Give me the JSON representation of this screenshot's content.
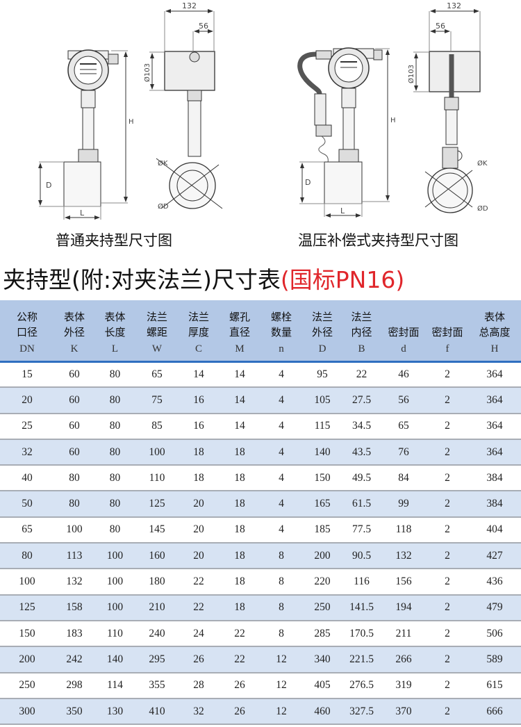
{
  "drawings": {
    "standard": {
      "caption": "普通夹持型尺寸图",
      "dims": {
        "overall_width": "132",
        "head_offset": "56",
        "head_diameter": "Ø103",
        "height": "H",
        "pipe_diameter": "D",
        "length": "L",
        "body_od": "ØK",
        "flange_od": "ØD"
      }
    },
    "compensated": {
      "caption": "温压补偿式夹持型尺寸图",
      "dims": {
        "overall_width": "132",
        "head_offset": "56",
        "head_diameter": "Ø103",
        "height": "H",
        "pipe_diameter": "D",
        "length": "L",
        "body_od": "ØK",
        "flange_od": "ØD"
      }
    }
  },
  "title": {
    "main": "夹持型(附:对夹法兰)尺寸表",
    "standard": "(国标PN16)",
    "accent_color": "#e0262b"
  },
  "table": {
    "columns": [
      {
        "l1": "公称",
        "l2": "口径",
        "sym": "DN"
      },
      {
        "l1": "表体",
        "l2": "外径",
        "sym": "K"
      },
      {
        "l1": "表体",
        "l2": "长度",
        "sym": "L"
      },
      {
        "l1": "法兰",
        "l2": "螺距",
        "sym": "W"
      },
      {
        "l1": "法兰",
        "l2": "厚度",
        "sym": "C"
      },
      {
        "l1": "螺孔",
        "l2": "直径",
        "sym": "M"
      },
      {
        "l1": "螺栓",
        "l2": "数量",
        "sym": "n"
      },
      {
        "l1": "法兰",
        "l2": "外径",
        "sym": "D"
      },
      {
        "l1": "法兰",
        "l2": "内径",
        "sym": "B"
      },
      {
        "l1": "",
        "l2": "密封面",
        "sym": "d"
      },
      {
        "l1": "",
        "l2": "密封面",
        "sym": "f"
      },
      {
        "l1": "表体",
        "l2": "总高度",
        "sym": "H"
      }
    ],
    "rows": [
      [
        "15",
        "60",
        "80",
        "65",
        "14",
        "14",
        "4",
        "95",
        "22",
        "46",
        "2",
        "364"
      ],
      [
        "20",
        "60",
        "80",
        "75",
        "16",
        "14",
        "4",
        "105",
        "27.5",
        "56",
        "2",
        "364"
      ],
      [
        "25",
        "60",
        "80",
        "85",
        "16",
        "14",
        "4",
        "115",
        "34.5",
        "65",
        "2",
        "364"
      ],
      [
        "32",
        "60",
        "80",
        "100",
        "18",
        "18",
        "4",
        "140",
        "43.5",
        "76",
        "2",
        "364"
      ],
      [
        "40",
        "80",
        "80",
        "110",
        "18",
        "18",
        "4",
        "150",
        "49.5",
        "84",
        "2",
        "384"
      ],
      [
        "50",
        "80",
        "80",
        "125",
        "20",
        "18",
        "4",
        "165",
        "61.5",
        "99",
        "2",
        "384"
      ],
      [
        "65",
        "100",
        "80",
        "145",
        "20",
        "18",
        "4",
        "185",
        "77.5",
        "118",
        "2",
        "404"
      ],
      [
        "80",
        "113",
        "100",
        "160",
        "20",
        "18",
        "8",
        "200",
        "90.5",
        "132",
        "2",
        "427"
      ],
      [
        "100",
        "132",
        "100",
        "180",
        "22",
        "18",
        "8",
        "220",
        "116",
        "156",
        "2",
        "436"
      ],
      [
        "125",
        "158",
        "100",
        "210",
        "22",
        "18",
        "8",
        "250",
        "141.5",
        "194",
        "2",
        "479"
      ],
      [
        "150",
        "183",
        "110",
        "240",
        "24",
        "22",
        "8",
        "285",
        "170.5",
        "211",
        "2",
        "506"
      ],
      [
        "200",
        "242",
        "140",
        "295",
        "26",
        "22",
        "12",
        "340",
        "221.5",
        "266",
        "2",
        "589"
      ],
      [
        "250",
        "298",
        "114",
        "355",
        "28",
        "26",
        "12",
        "405",
        "276.5",
        "319",
        "2",
        "615"
      ],
      [
        "300",
        "350",
        "130",
        "410",
        "32",
        "26",
        "12",
        "460",
        "327.5",
        "370",
        "2",
        "666"
      ]
    ]
  }
}
